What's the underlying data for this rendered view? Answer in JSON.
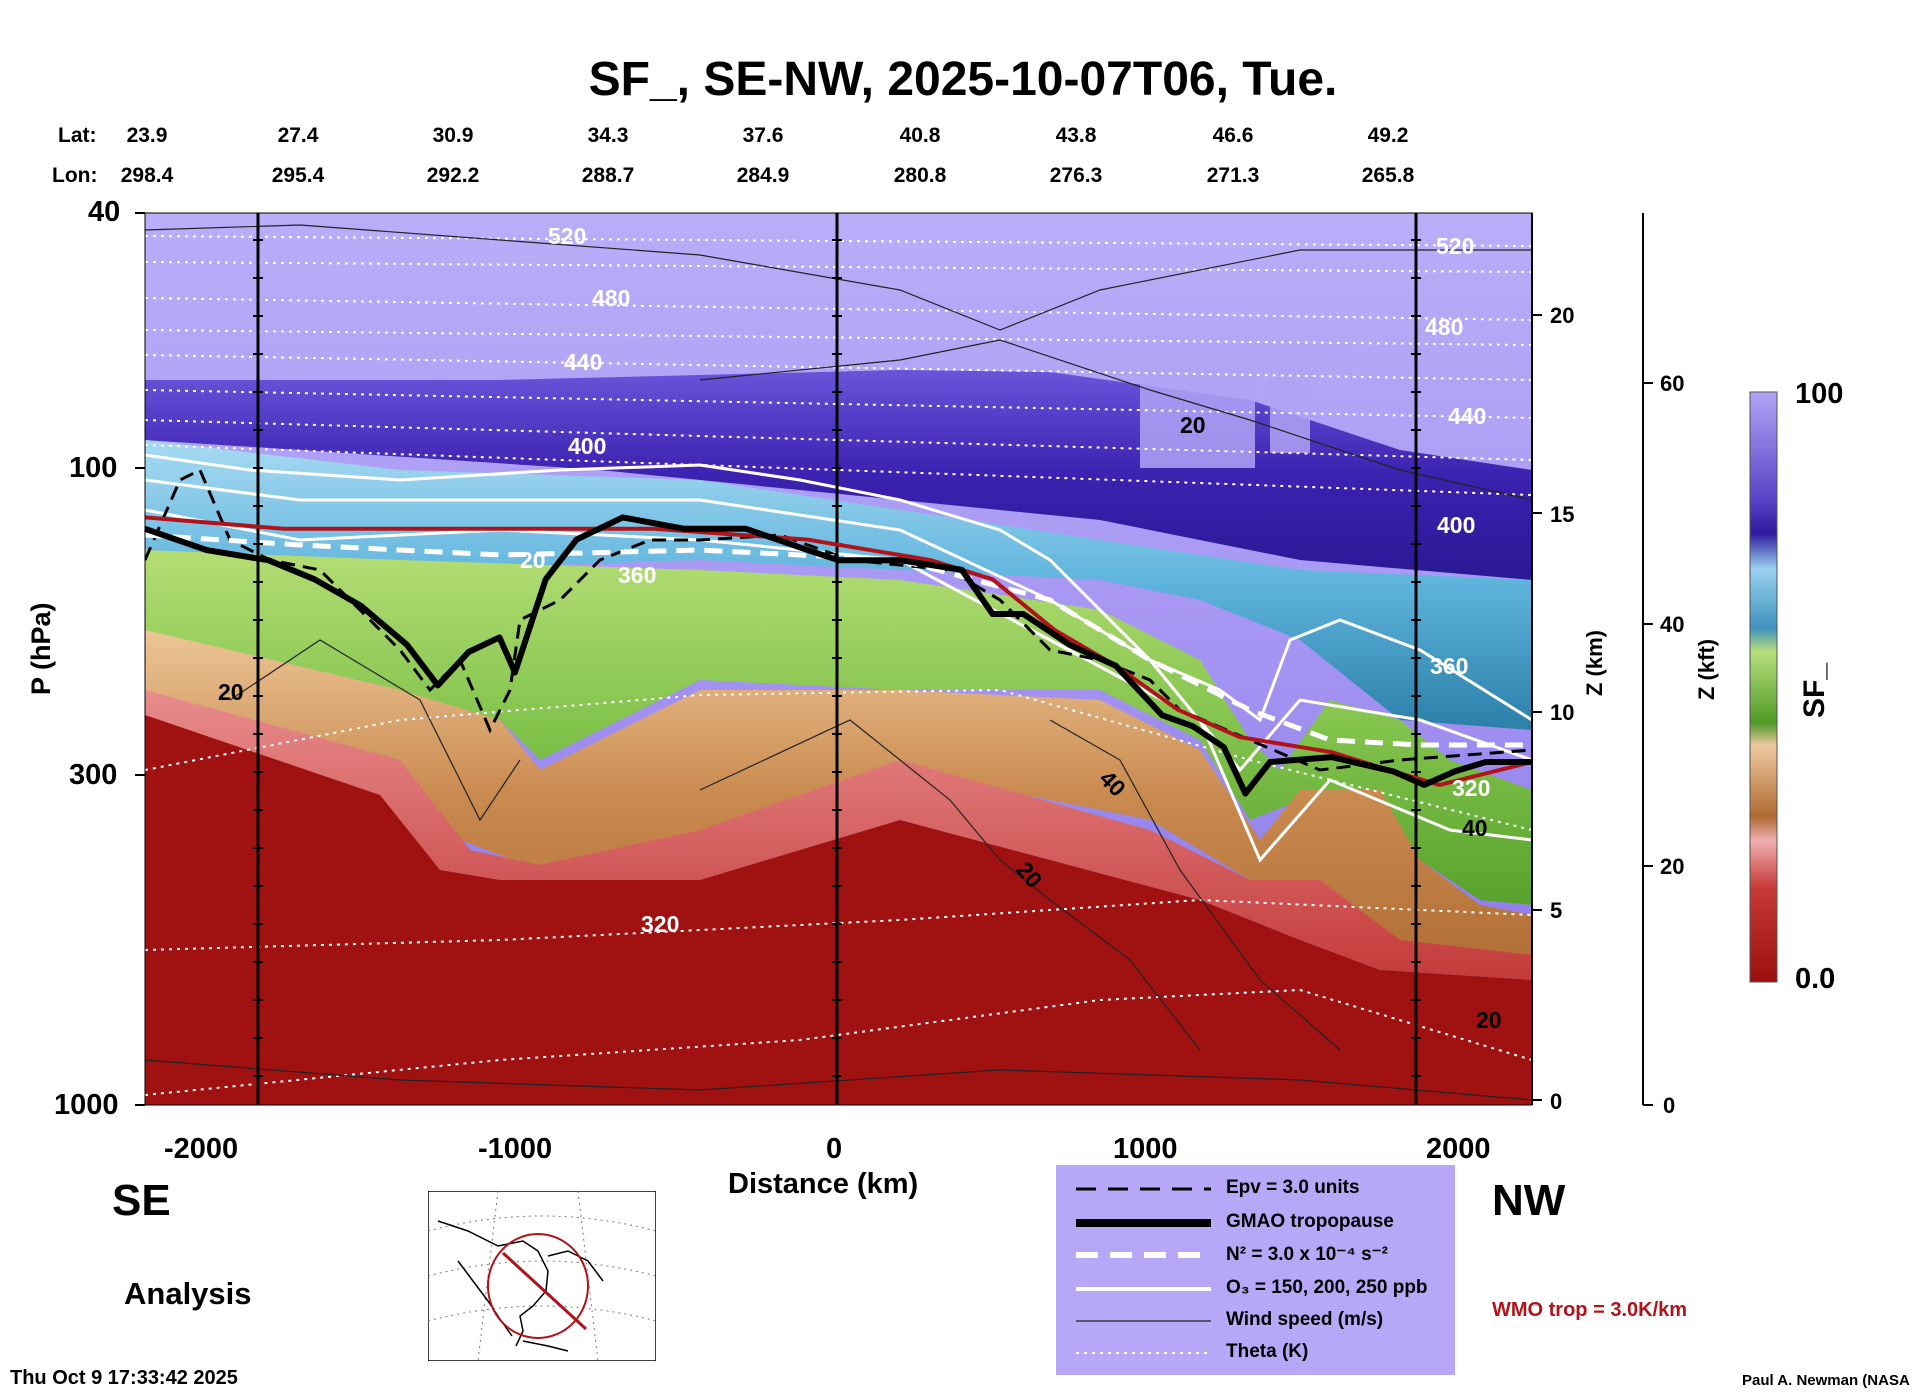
{
  "title": "SF_, SE-NW, 2025-10-07T06, Tue.",
  "lat_label": "Lat:",
  "lon_label": "Lon:",
  "lat_values": [
    "23.9",
    "27.4",
    "30.9",
    "34.3",
    "37.6",
    "40.8",
    "43.8",
    "46.6",
    "49.2"
  ],
  "lon_values": [
    "298.4",
    "295.4",
    "292.2",
    "288.7",
    "284.9",
    "280.8",
    "276.3",
    "271.3",
    "265.8"
  ],
  "direction_left": "SE",
  "direction_right": "NW",
  "analysis_label": "Analysis",
  "timestamp": "Thu Oct  9 17:33:42 2025",
  "credit": "Paul A. Newman (NASA",
  "wmo_label": "WMO trop = 3.0K/km",
  "colorbar": {
    "max_label": "100",
    "min_label": "0.0",
    "title": "SF_"
  },
  "legend": [
    {
      "label": "Epv = 3.0 units",
      "style": "dashed-black"
    },
    {
      "label": "GMAO tropopause",
      "style": "thick-black"
    },
    {
      "label": "N² = 3.0 x 10⁻⁴ s⁻²",
      "style": "dashed-white"
    },
    {
      "label": "O₃ = 150, 200, 250 ppb",
      "style": "solid-white"
    },
    {
      "label": "Wind speed (m/s)",
      "style": "thin-black"
    },
    {
      "label": "Theta (K)",
      "style": "dotted-white"
    }
  ],
  "colors": {
    "high": "#3a1fa8",
    "mid": "#6fc0e0",
    "green": "#6db63a",
    "tan": "#d8a46a",
    "low": "#a01010",
    "wmo": "#b0141a",
    "legend_bg": "#b7a8f7"
  },
  "chart_data": {
    "type": "heatmap",
    "xlabel": "Distance (km)",
    "ylabel": "P (hPa)",
    "y2label": "Z (km)",
    "y3label": "Z (kft)",
    "xlim": [
      -2250,
      2250
    ],
    "ylim": [
      1000,
      40
    ],
    "y_scale": "log",
    "x_ticks": [
      "-2000",
      "-1000",
      "0",
      "1000",
      "2000"
    ],
    "y_ticks": [
      "40",
      "100",
      "300",
      "1000"
    ],
    "z_km_ticks": [
      "0",
      "5",
      "10",
      "15",
      "20"
    ],
    "z_kft_ticks": [
      "0",
      "20",
      "40",
      "60"
    ],
    "theta_labels": [
      "520",
      "480",
      "440",
      "400",
      "360",
      "320"
    ],
    "wind_labels": [
      "20",
      "20",
      "40",
      "20",
      "40",
      "20",
      "20"
    ],
    "tropopause_gmao": [
      [
        -2250,
        125
      ],
      [
        -2050,
        135
      ],
      [
        -1850,
        140
      ],
      [
        -1700,
        150
      ],
      [
        -1550,
        165
      ],
      [
        -1400,
        190
      ],
      [
        -1300,
        220
      ],
      [
        -1200,
        195
      ],
      [
        -1100,
        185
      ],
      [
        -1050,
        210
      ],
      [
        -950,
        150
      ],
      [
        -850,
        130
      ],
      [
        -700,
        120
      ],
      [
        -500,
        125
      ],
      [
        -300,
        125
      ],
      [
        -100,
        135
      ],
      [
        0,
        140
      ],
      [
        200,
        140
      ],
      [
        400,
        145
      ],
      [
        500,
        170
      ],
      [
        600,
        170
      ],
      [
        750,
        190
      ],
      [
        900,
        205
      ],
      [
        1050,
        245
      ],
      [
        1150,
        255
      ],
      [
        1250,
        275
      ],
      [
        1320,
        325
      ],
      [
        1400,
        290
      ],
      [
        1600,
        285
      ],
      [
        1800,
        300
      ],
      [
        1900,
        315
      ],
      [
        2000,
        300
      ],
      [
        2100,
        290
      ],
      [
        2250,
        290
      ]
    ],
    "wmo_tropopause": [
      [
        -2250,
        120
      ],
      [
        -1800,
        125
      ],
      [
        -1200,
        125
      ],
      [
        -600,
        125
      ],
      [
        -100,
        130
      ],
      [
        300,
        140
      ],
      [
        500,
        150
      ],
      [
        700,
        180
      ],
      [
        900,
        205
      ],
      [
        1100,
        240
      ],
      [
        1300,
        265
      ],
      [
        1600,
        280
      ],
      [
        1800,
        300
      ],
      [
        1950,
        315
      ],
      [
        2250,
        290
      ]
    ]
  }
}
